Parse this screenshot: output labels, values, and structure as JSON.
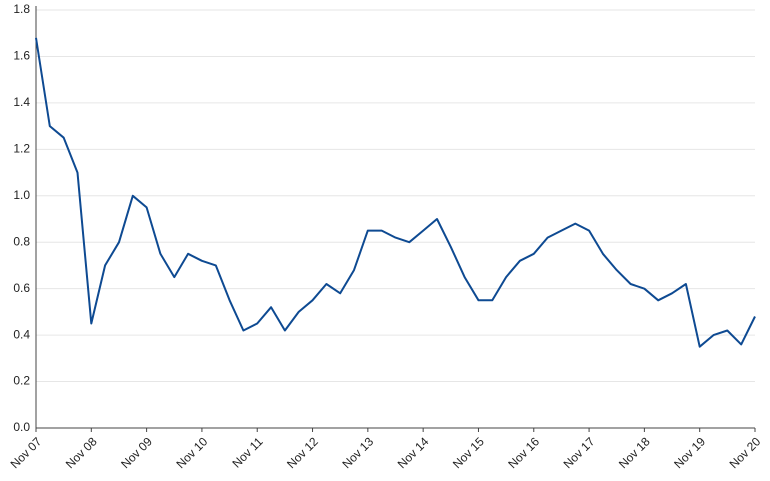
{
  "chart_data": {
    "type": "line",
    "categories": [
      "Nov 07",
      null,
      null,
      null,
      "Nov 08",
      null,
      null,
      null,
      "Nov 09",
      null,
      null,
      null,
      "Nov 10",
      null,
      null,
      null,
      "Nov 11",
      null,
      null,
      null,
      "Nov 12",
      null,
      null,
      null,
      "Nov 13",
      null,
      null,
      null,
      "Nov 14",
      null,
      null,
      null,
      "Nov 15",
      null,
      null,
      null,
      "Nov 16",
      null,
      null,
      null,
      "Nov 17",
      null,
      null,
      null,
      "Nov 18",
      null,
      null,
      null,
      "Nov 19",
      null,
      null,
      null,
      "Nov 20"
    ],
    "values": [
      1.68,
      1.3,
      1.25,
      1.1,
      0.45,
      0.7,
      0.8,
      1.0,
      0.95,
      0.75,
      0.65,
      0.75,
      0.72,
      0.7,
      0.55,
      0.42,
      0.45,
      0.52,
      0.42,
      0.5,
      0.55,
      0.62,
      0.58,
      0.68,
      0.85,
      0.85,
      0.82,
      0.8,
      0.85,
      0.9,
      0.78,
      0.65,
      0.55,
      0.55,
      0.65,
      0.72,
      0.75,
      0.82,
      0.85,
      0.88,
      0.85,
      0.75,
      0.68,
      0.62,
      0.6,
      0.55,
      0.58,
      0.62,
      0.35,
      0.4,
      0.42,
      0.36,
      0.48
    ],
    "color": "#0e4a92",
    "ylim": [
      0,
      1.8
    ],
    "yticks": [
      {
        "value": 0,
        "label": "0.0"
      },
      0.2,
      0.4,
      0.6,
      0.8,
      {
        "value": 1,
        "label": "1.0"
      },
      1.2,
      1.4,
      1.6,
      1.8
    ],
    "grid": true
  }
}
